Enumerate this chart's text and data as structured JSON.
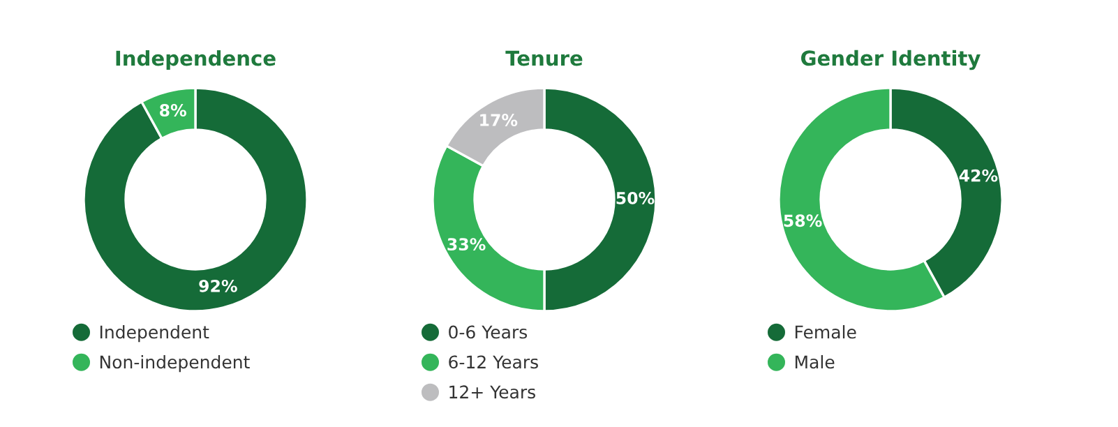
{
  "chart_data": [
    {
      "type": "donut",
      "title": "Independence",
      "categories": [
        "Independent",
        "Non-independent"
      ],
      "values": [
        92,
        8
      ],
      "colors": [
        "#156b38",
        "#34b55a"
      ],
      "value_labels": [
        "92%",
        "8%"
      ],
      "legend": "bottom"
    },
    {
      "type": "donut",
      "title": "Tenure",
      "categories": [
        "0-6 Years",
        "6-12 Years",
        "12+ Years"
      ],
      "values": [
        50,
        33,
        17
      ],
      "colors": [
        "#156b38",
        "#34b55a",
        "#bdbdbf"
      ],
      "value_labels": [
        "50%",
        "33%",
        "17%"
      ],
      "legend": "bottom"
    },
    {
      "type": "donut",
      "title": "Gender Identity",
      "categories": [
        "Female",
        "Male"
      ],
      "values": [
        42,
        58
      ],
      "colors": [
        "#156b38",
        "#34b55a"
      ],
      "value_labels": [
        "42%",
        "58%"
      ],
      "legend": "bottom"
    }
  ]
}
